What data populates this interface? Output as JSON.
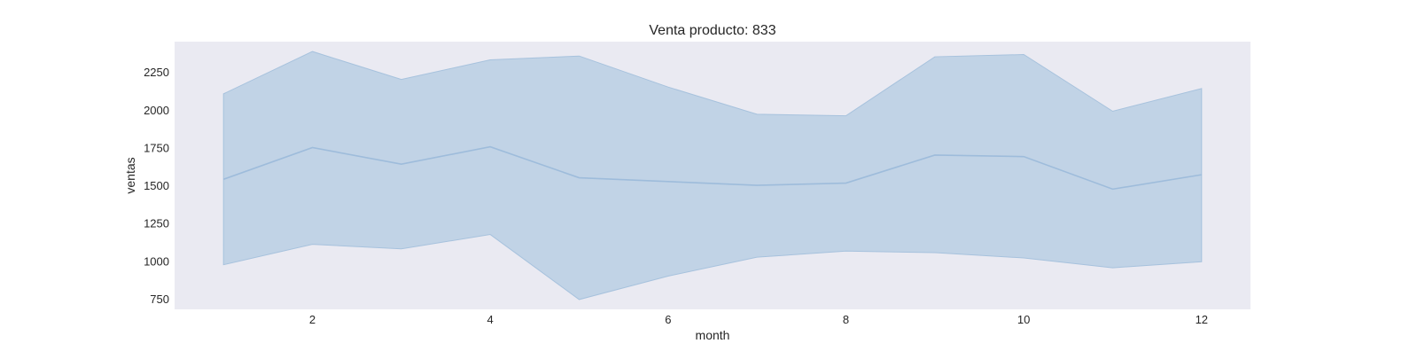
{
  "chart_data": {
    "type": "area",
    "title": "Venta producto: 833",
    "xlabel": "month",
    "ylabel": "ventas",
    "x": [
      1,
      2,
      3,
      4,
      5,
      6,
      7,
      8,
      9,
      10,
      11,
      12
    ],
    "xticks": [
      2,
      4,
      6,
      8,
      10,
      12
    ],
    "yticks": [
      750,
      1000,
      1250,
      1500,
      1750,
      2000,
      2250
    ],
    "xlim": [
      0.45,
      12.55
    ],
    "ylim": [
      680,
      2450
    ],
    "series": [
      {
        "mean": [
          1540,
          1750,
          1640,
          1755,
          1550,
          1525,
          1500,
          1515,
          1700,
          1690,
          1475,
          1570
        ],
        "upper": [
          2105,
          2385,
          2200,
          2330,
          2355,
          2150,
          1970,
          1960,
          2350,
          2365,
          1990,
          2140
        ],
        "lower": [
          975,
          1110,
          1080,
          1175,
          745,
          900,
          1025,
          1065,
          1055,
          1020,
          955,
          995
        ]
      }
    ],
    "grid": false,
    "legend": "none"
  },
  "colors": {
    "plot_background": "#eaeaf2",
    "band_fill": "#c1d3e6",
    "band_edge": "#a7c2dd",
    "mean_line": "#9ebcdb"
  }
}
